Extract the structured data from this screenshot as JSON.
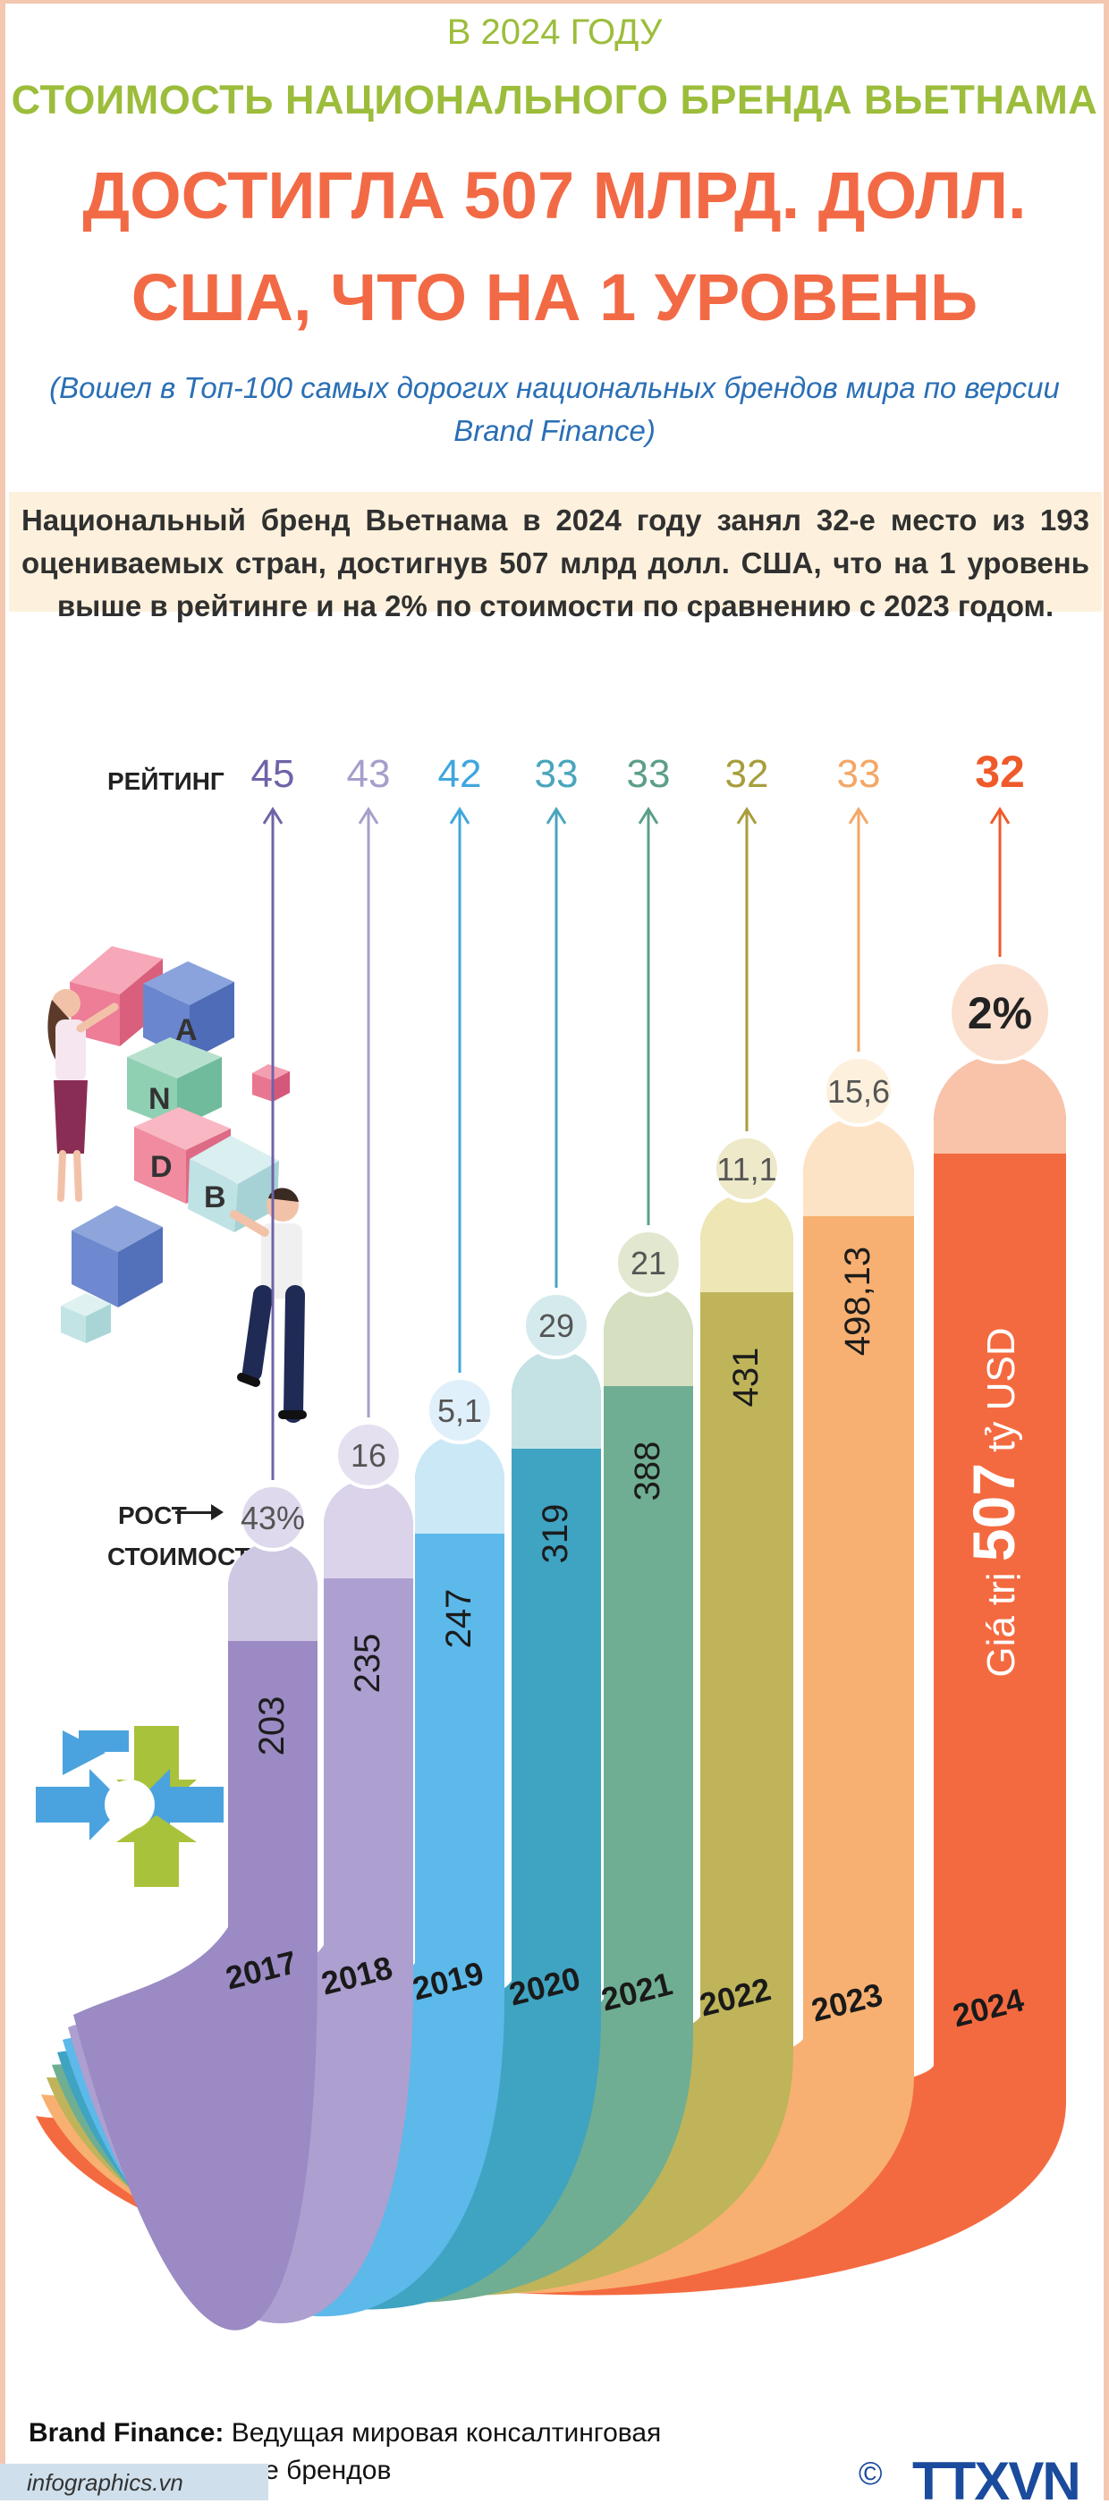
{
  "header": {
    "year_line": "В 2024 ГОДУ",
    "line1": "СТОИМОСТЬ НАЦИОНАЛЬНОГО БРЕНДА ВЬЕТНАМА",
    "line2": "ДОСТИГЛА 507 МЛРД. ДОЛЛ.",
    "line3": "США, ЧТО НА 1 УРОВЕНЬ",
    "subtitle": "(Вошел в Топ-100 самых дорогих национальных брендов мира по версии Brand Finance)"
  },
  "lead_text": "Национальный бренд Вьетнама в 2024 году занял 32-е место из 193 оцениваемых стран, достигнув 507 млрд долл. США, что на 1 уровень выше в рейтинге и на 2% по стоимости по сравнению с 2023 годом.",
  "labels": {
    "rating": "РЕЙТИНГ",
    "growth_line1": "РОСТ",
    "growth_line2": "СТОИМОСТИ"
  },
  "illustration_letters": [
    "A",
    "N",
    "D",
    "B"
  ],
  "chart_data": {
    "type": "bar",
    "categories": [
      "2017",
      "2018",
      "2019",
      "2020",
      "2021",
      "2022",
      "2023",
      "2024"
    ],
    "series": [
      {
        "name": "",
        "values": [
          203,
          235,
          247,
          319,
          388,
          431,
          498.13,
          507
        ]
      }
    ],
    "value_labels": [
      "203",
      "235",
      "247",
      "319",
      "388",
      "431",
      "498,13",
      "507"
    ],
    "rating": [
      "45",
      "43",
      "42",
      "33",
      "33",
      "32",
      "33",
      "32"
    ],
    "growth": [
      "43%",
      "16",
      "5,1",
      "29",
      "21",
      "11,1",
      "15,6",
      "2%"
    ],
    "highlight_value_text_prefix": "Giá trị",
    "highlight_value_text_suffix": "tỷ USD",
    "colors": {
      "bars": [
        "#9b8ac4",
        "#ad9fd0",
        "#5cb9ea",
        "#3fa3c2",
        "#6fae92",
        "#bfb45a",
        "#f7b071",
        "#f46a40"
      ],
      "caps": [
        "#cfc8e3",
        "#dad3ea",
        "#cbe8f7",
        "#c4e2e4",
        "#d6dfbf",
        "#efe6b6",
        "#fde3c6",
        "#f8c3a8"
      ],
      "bubbles": [
        "#ded9ec",
        "#e4e0ef",
        "#dff0fa",
        "#d5eaec",
        "#e1e8cf",
        "#ede9c9",
        "#fdf1dd",
        "#fbe0cf"
      ],
      "rating_text": [
        "#6f63a8",
        "#a79ecb",
        "#3fa6dd",
        "#4aa5bd",
        "#5c9f86",
        "#a89d3c",
        "#f3a767",
        "#f05a2a"
      ]
    }
  },
  "footer": {
    "source_name": "Brand Finance:",
    "source_desc": "Ведущая мировая консалтинговая компания по оценке брендов",
    "site": "infographics.vn",
    "copyright": "©",
    "logo": "TTXVN"
  }
}
